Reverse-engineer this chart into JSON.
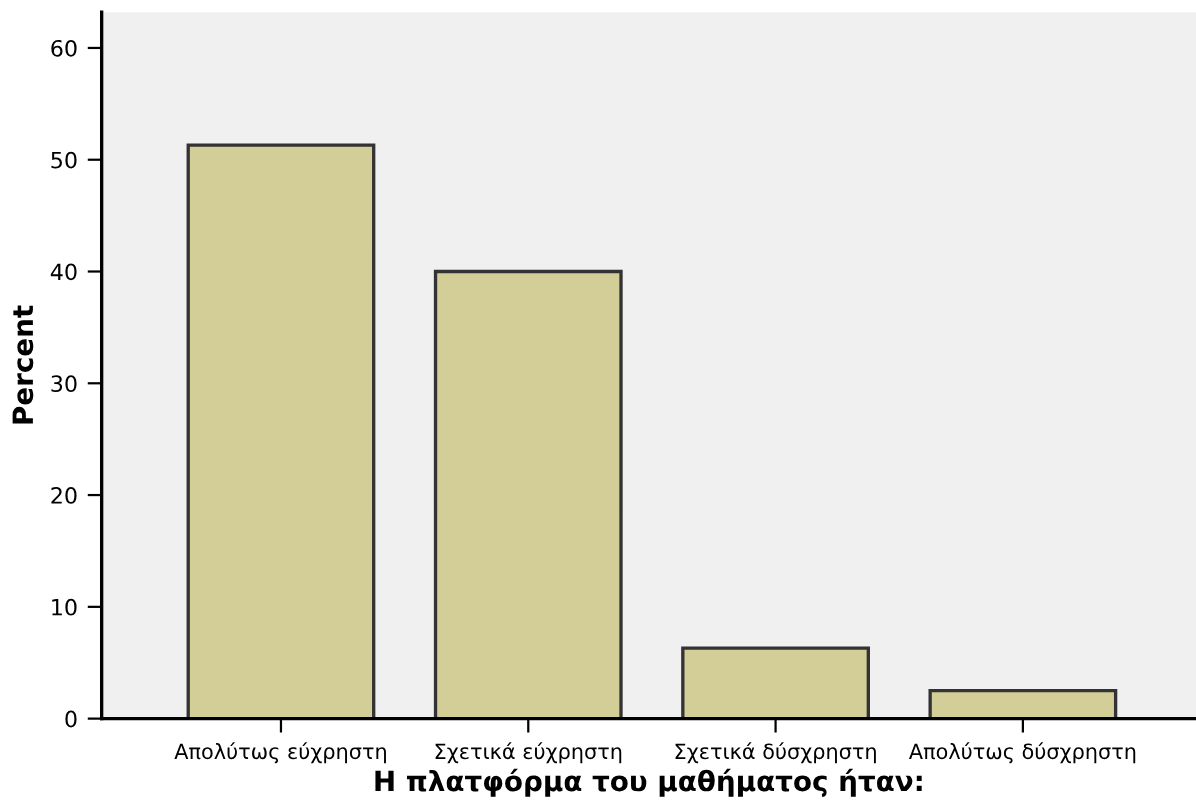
{
  "chart_data": {
    "type": "bar",
    "xlabel": "Η πλατφόρμα του μαθήματος ήταν:",
    "ylabel": "Percent",
    "categories": [
      "Απολύτως εύχρηστη",
      "Σχετικά εύχρηστη",
      "Σχετικά δύσχρηστη",
      "Απολύτως δύσχρηστη"
    ],
    "values": [
      51.3,
      40.0,
      6.3,
      2.5
    ],
    "color": "#d3ce97",
    "ylim": [
      0,
      63.2
    ],
    "yticks": [
      0,
      10,
      20,
      30,
      40,
      50,
      60
    ],
    "grid": false,
    "legend": false
  }
}
